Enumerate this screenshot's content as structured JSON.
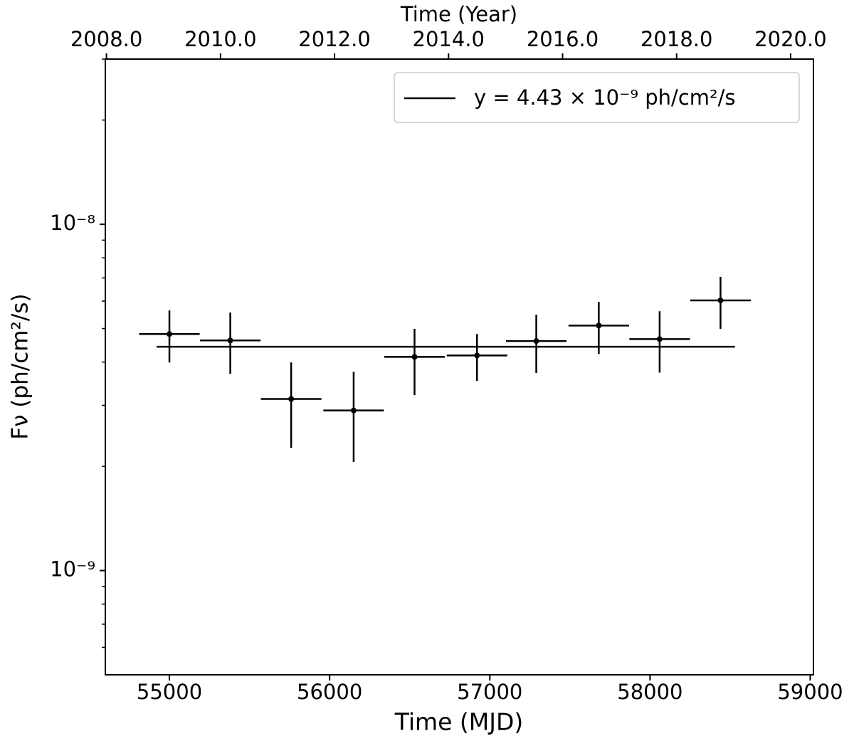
{
  "chart_data": {
    "type": "errorbar",
    "title": "Time (Year)",
    "xlabel": "Time (MJD)",
    "ylabel": "Fν (ph/cm²/s)",
    "xlim": [
      54600,
      59020
    ],
    "xticks": [
      55000,
      56000,
      57000,
      58000,
      59000
    ],
    "x2lim": [
      2007.98,
      2020.4
    ],
    "x2ticks": [
      {
        "value": 2008,
        "label": "2008.0"
      },
      {
        "value": 2010,
        "label": "2010.0"
      },
      {
        "value": 2012,
        "label": "2012.0"
      },
      {
        "value": 2014,
        "label": "2014.0"
      },
      {
        "value": 2016,
        "label": "2016.0"
      },
      {
        "value": 2018,
        "label": "2018.0"
      },
      {
        "value": 2020,
        "label": "2020.0"
      }
    ],
    "ylim": [
      5e-10,
      3e-08
    ],
    "yscale": "log",
    "yticks": [
      {
        "value": 1e-09,
        "label": "10⁻⁹"
      },
      {
        "value": 1e-08,
        "label": "10⁻⁸"
      }
    ],
    "yminorticks": [
      6e-10,
      7e-10,
      8e-10,
      9e-10,
      2e-09,
      3e-09,
      4e-09,
      5e-09,
      6e-09,
      7e-09,
      8e-09,
      9e-09,
      2e-08,
      3e-08
    ],
    "legend": "upper right",
    "series": [
      {
        "color": "#000000",
        "x": [
          55000,
          55380,
          55760,
          56150,
          56530,
          56920,
          57290,
          57680,
          58060,
          58440
        ],
        "xerr": [
          189,
          189,
          189,
          189,
          189,
          189,
          189,
          189,
          189,
          189
        ],
        "values": [
          4.82e-09,
          4.62e-09,
          3.13e-09,
          2.9e-09,
          4.14e-09,
          4.18e-09,
          4.6e-09,
          5.1e-09,
          4.66e-09,
          6.03e-09
        ],
        "yerr_plus": [
          8.2e-10,
          9.4e-10,
          8.6e-10,
          8.5e-10,
          8.5e-10,
          6.4e-10,
          8.8e-10,
          8.7e-10,
          9.5e-10,
          1.02e-09
        ],
        "yerr_minus": [
          8.3e-10,
          9.2e-10,
          8.7e-10,
          8.4e-10,
          9.3e-10,
          6.5e-10,
          8.8e-10,
          8.8e-10,
          9.3e-10,
          1.04e-09
        ]
      }
    ],
    "fit": {
      "name": "y = 4.43 × 10⁻⁹ ph/cm²/s",
      "color": "#000000",
      "value": 4.43e-09,
      "x": [
        54920,
        58530
      ]
    }
  }
}
